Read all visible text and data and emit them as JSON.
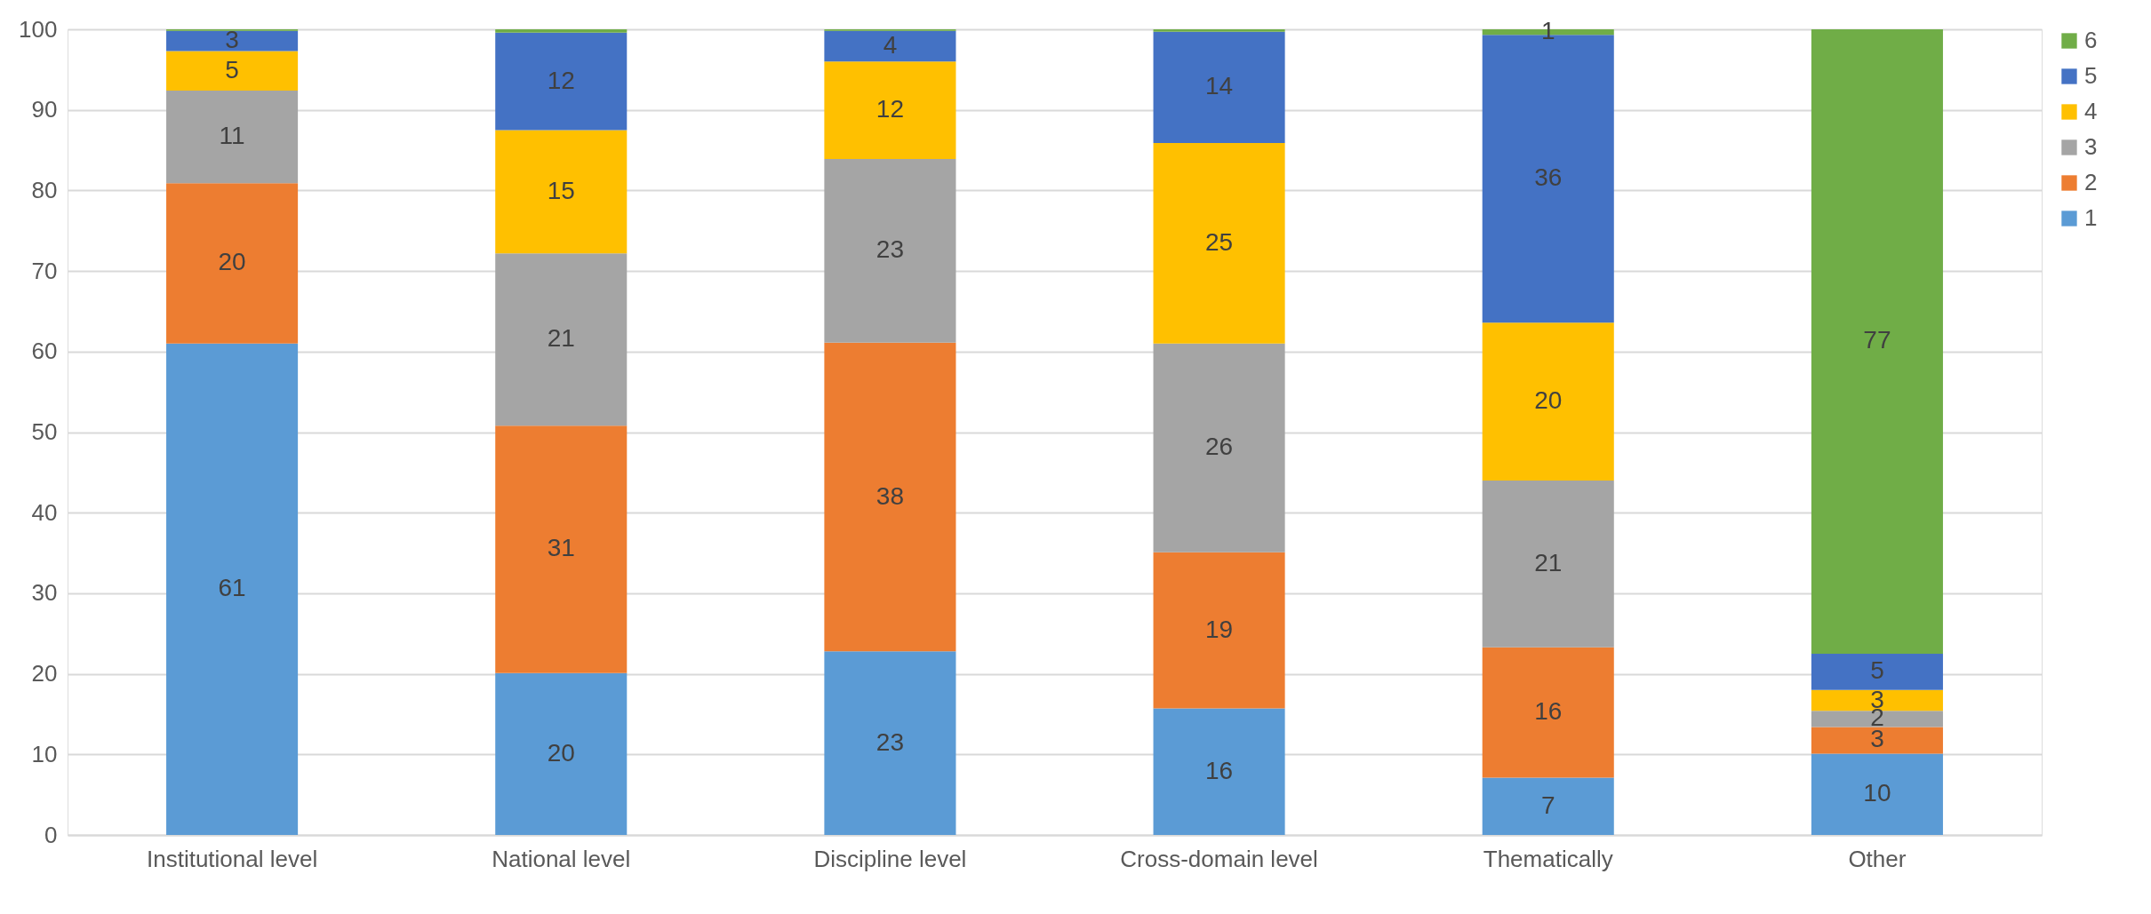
{
  "chart_data": {
    "type": "bar",
    "stacked": true,
    "categories": [
      "Institutional level",
      "National level",
      "Discipline level",
      "Cross-domain level",
      "Thematically",
      "Other"
    ],
    "series": [
      {
        "name": "1",
        "color": "#5b9bd5",
        "values": [
          61,
          20.1,
          22.8,
          15.7,
          7.1,
          10.1
        ],
        "value_labels": [
          "61",
          "20",
          "23",
          "16",
          "7",
          "10"
        ]
      },
      {
        "name": "2",
        "color": "#ed7d31",
        "values": [
          19.9,
          30.7,
          38.3,
          19.4,
          16.2,
          3.3
        ],
        "value_labels": [
          "20",
          "31",
          "38",
          "19",
          "16",
          "3"
        ]
      },
      {
        "name": "3",
        "color": "#a5a5a5",
        "values": [
          11.5,
          21.4,
          22.8,
          25.9,
          20.7,
          2.0
        ],
        "value_labels": [
          "11",
          "21",
          "23",
          "26",
          "21",
          "2"
        ]
      },
      {
        "name": "4",
        "color": "#ffc000",
        "values": [
          4.9,
          15.3,
          12.1,
          24.9,
          19.6,
          2.6
        ],
        "value_labels": [
          "5",
          "15",
          "12",
          "25",
          "20",
          "3"
        ]
      },
      {
        "name": "5",
        "color": "#4472c4",
        "values": [
          2.5,
          12.1,
          3.8,
          13.8,
          35.7,
          4.5
        ],
        "value_labels": [
          "3",
          "12",
          "4",
          "14",
          "36",
          "5"
        ]
      },
      {
        "name": "6",
        "color": "#70ad47",
        "values": [
          0.2,
          0.4,
          0.2,
          0.3,
          0.7,
          77.5
        ],
        "value_labels": [
          null,
          null,
          null,
          null,
          "1",
          "77"
        ]
      }
    ],
    "ylim": [
      0,
      100
    ],
    "yticks": [
      0,
      10,
      20,
      30,
      40,
      50,
      60,
      70,
      80,
      90,
      100
    ],
    "grid": "y",
    "legend": "right"
  }
}
